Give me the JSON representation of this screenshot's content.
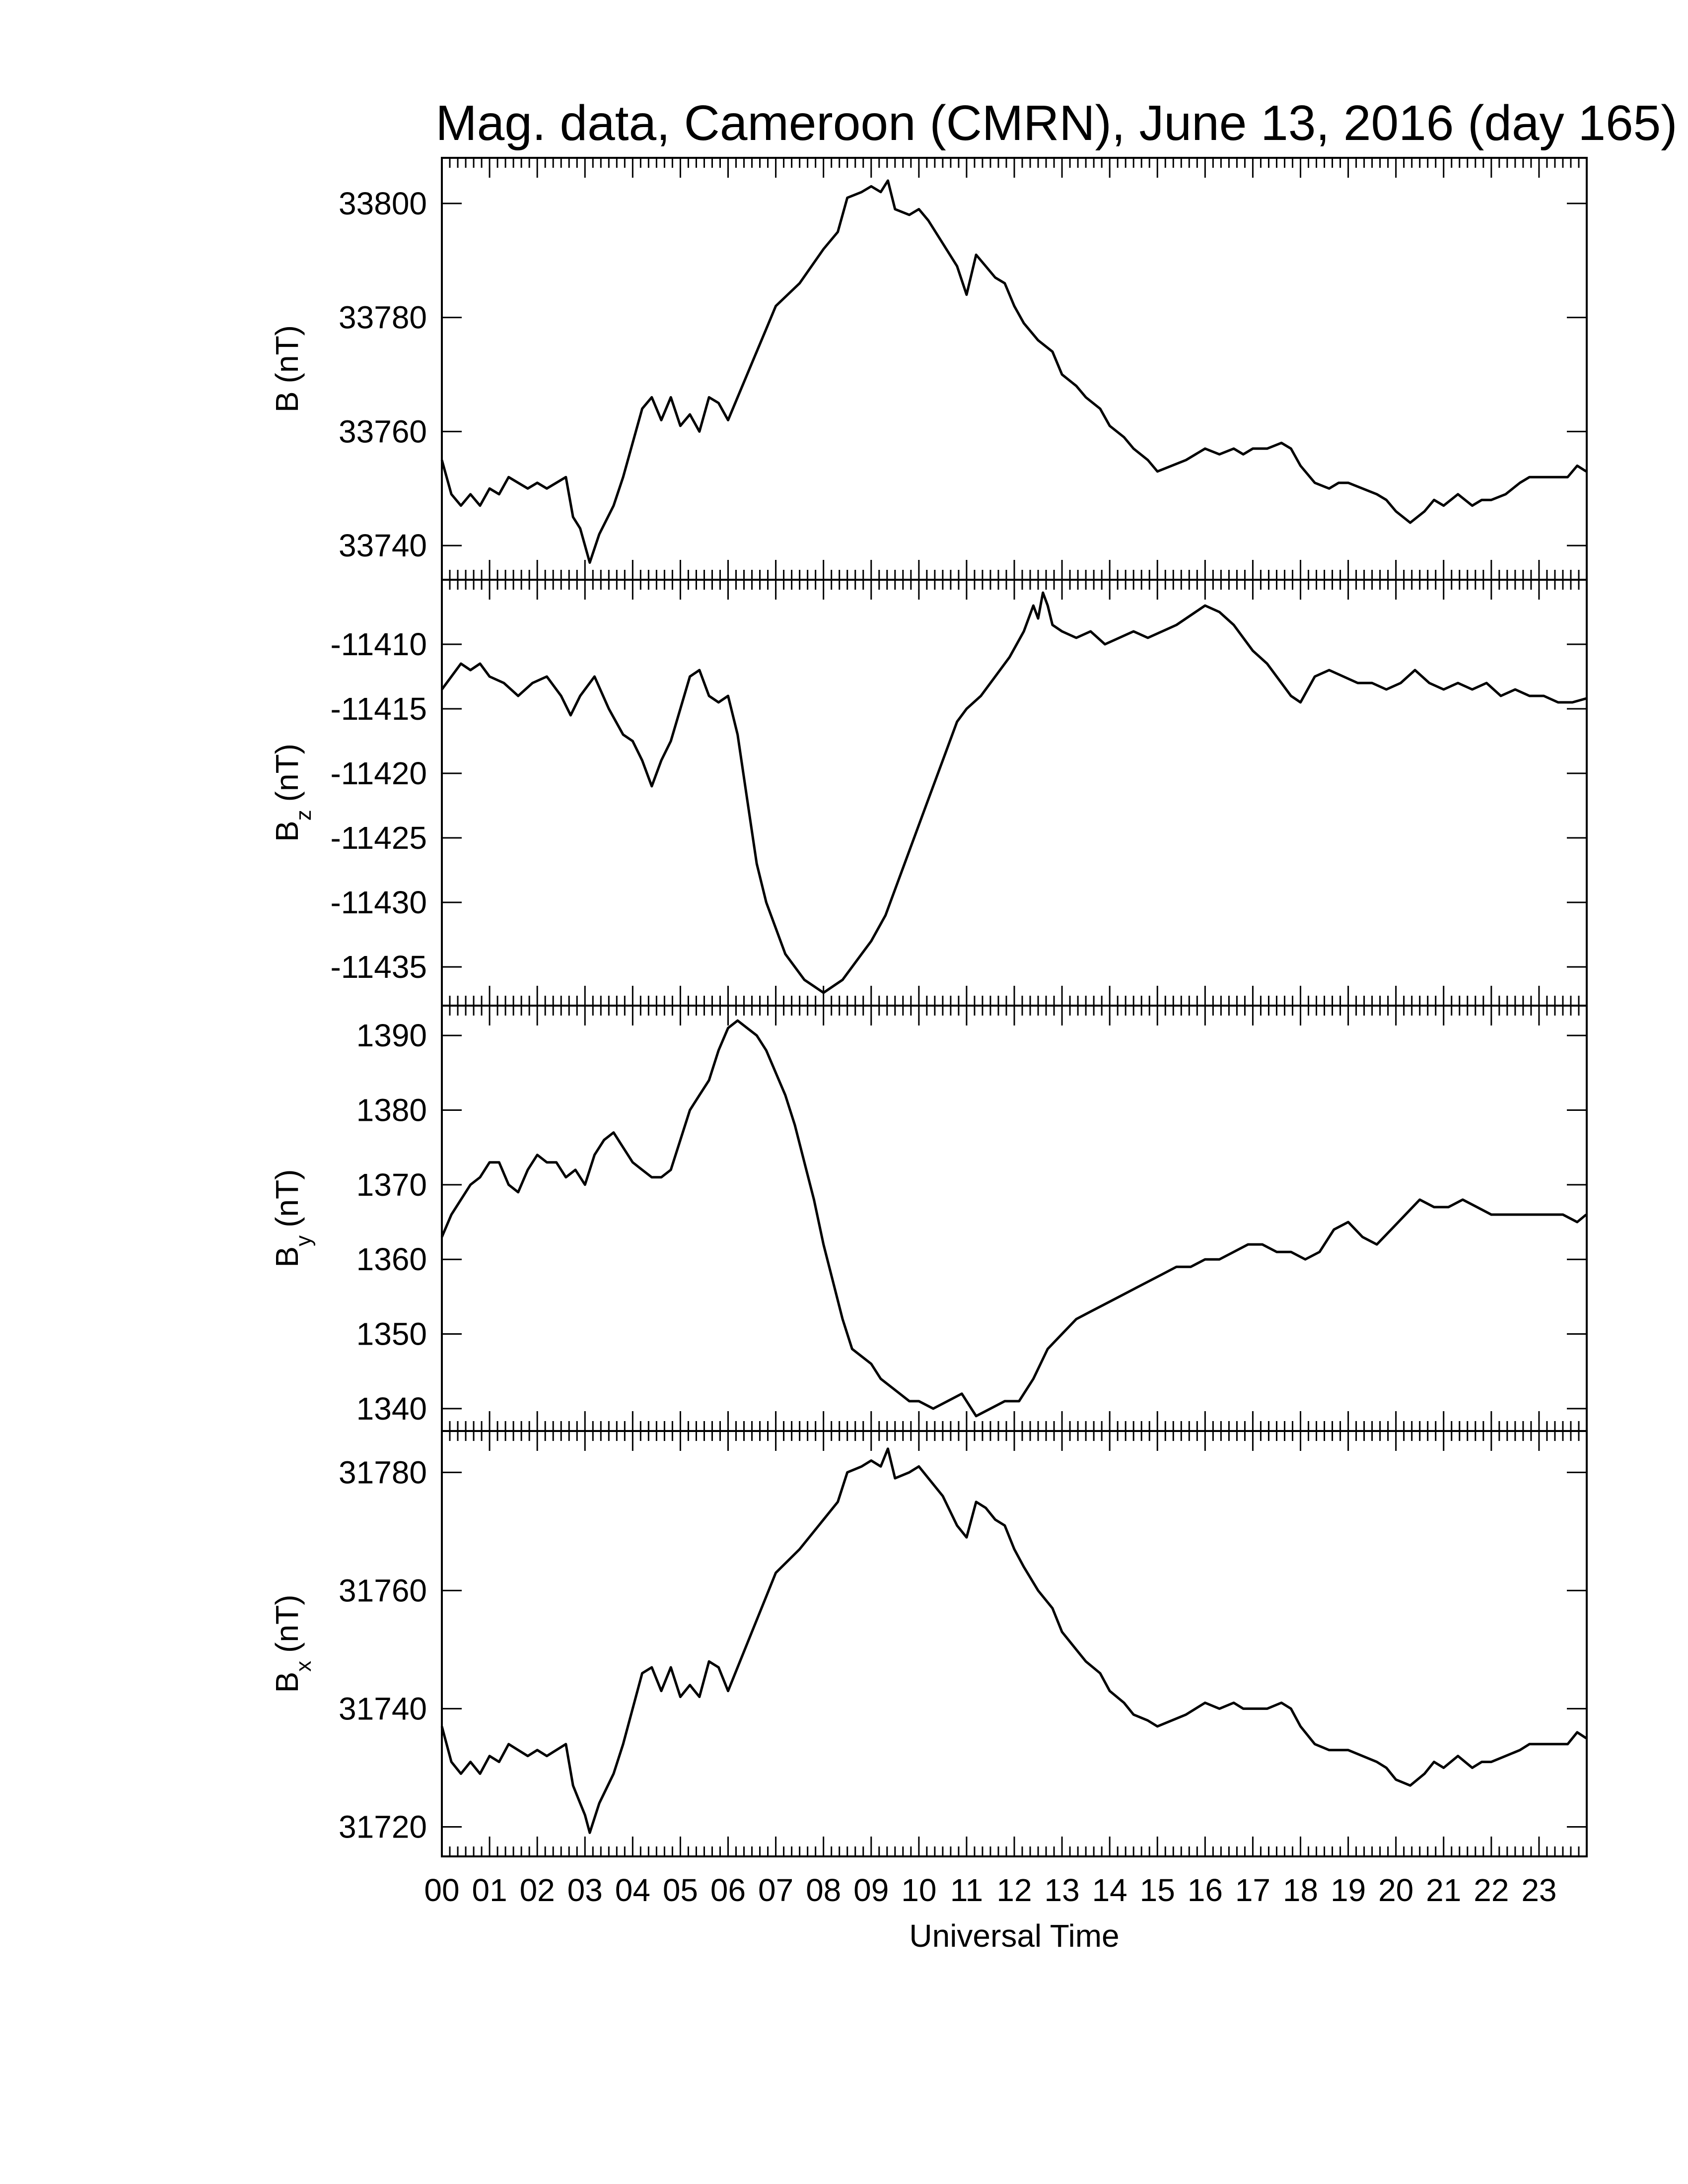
{
  "chart_data": {
    "type": "line",
    "title": "Mag. data, Cameroon (CMRN), June 13, 2016 (day 165)",
    "xlabel": "Universal Time",
    "x_tick_labels": [
      "00",
      "01",
      "02",
      "03",
      "04",
      "05",
      "06",
      "07",
      "08",
      "09",
      "10",
      "11",
      "12",
      "13",
      "14",
      "15",
      "16",
      "17",
      "18",
      "19",
      "20",
      "21",
      "22",
      "23"
    ],
    "xlim": [
      0,
      24
    ],
    "line_color": "#000000",
    "grid": false,
    "panels": [
      {
        "id": "B",
        "ylabel_main": "B",
        "ylabel_sub": "",
        "ylabel_unit": "(nT)",
        "ylim": [
          33734,
          33808
        ],
        "yticks": [
          33740,
          33760,
          33780,
          33800
        ],
        "ytick_labels": [
          "33740",
          "33760",
          "33780",
          "33800"
        ],
        "x": [
          0,
          0.2,
          0.4,
          0.6,
          0.8,
          1.0,
          1.2,
          1.4,
          1.6,
          1.8,
          2.0,
          2.2,
          2.4,
          2.6,
          2.75,
          2.9,
          3.0,
          3.1,
          3.3,
          3.6,
          3.8,
          4.0,
          4.2,
          4.4,
          4.6,
          4.8,
          5.0,
          5.2,
          5.4,
          5.6,
          5.8,
          6.0,
          6.2,
          6.5,
          6.8,
          7.0,
          7.5,
          8.0,
          8.3,
          8.5,
          8.8,
          9.0,
          9.2,
          9.35,
          9.5,
          9.8,
          10.0,
          10.2,
          10.5,
          10.8,
          11.0,
          11.2,
          11.4,
          11.6,
          11.8,
          12.0,
          12.2,
          12.5,
          12.8,
          13.0,
          13.3,
          13.5,
          13.8,
          14.0,
          14.3,
          14.5,
          14.8,
          15.0,
          15.3,
          15.6,
          15.8,
          16.0,
          16.3,
          16.6,
          16.8,
          17.0,
          17.3,
          17.6,
          17.8,
          18.0,
          18.3,
          18.6,
          18.8,
          19.0,
          19.3,
          19.6,
          19.8,
          20.0,
          20.3,
          20.6,
          20.8,
          21.0,
          21.3,
          21.6,
          21.8,
          22.0,
          22.3,
          22.6,
          22.8,
          23.0,
          23.3,
          23.6,
          23.8,
          23.99
        ],
        "values": [
          33755,
          33749,
          33747,
          33749,
          33747,
          33750,
          33749,
          33752,
          33751,
          33750,
          33751,
          33750,
          33751,
          33752,
          33745,
          33743,
          33740,
          33737,
          33742,
          33747,
          33752,
          33758,
          33764,
          33766,
          33762,
          33766,
          33761,
          33763,
          33760,
          33766,
          33765,
          33762,
          33766,
          33772,
          33778,
          33782,
          33786,
          33792,
          33795,
          33801,
          33802,
          33803,
          33802,
          33804,
          33799,
          33798,
          33799,
          33797,
          33793,
          33789,
          33784,
          33791,
          33789,
          33787,
          33786,
          33782,
          33779,
          33776,
          33774,
          33770,
          33768,
          33766,
          33764,
          33761,
          33759,
          33757,
          33755,
          33753,
          33754,
          33755,
          33756,
          33757,
          33756,
          33757,
          33756,
          33757,
          33757,
          33758,
          33757,
          33754,
          33751,
          33750,
          33751,
          33751,
          33750,
          33749,
          33748,
          33746,
          33744,
          33746,
          33748,
          33747,
          33749,
          33747,
          33748,
          33748,
          33749,
          33751,
          33752,
          33752,
          33752,
          33752,
          33754,
          33753
        ]
      },
      {
        "id": "Bz",
        "ylabel_main": "B",
        "ylabel_sub": "z",
        "ylabel_unit": "(nT)",
        "ylim": [
          -11438,
          -11405
        ],
        "yticks": [
          -11435,
          -11430,
          -11425,
          -11420,
          -11415,
          -11410
        ],
        "ytick_labels": [
          "-11435",
          "-11430",
          "-11425",
          "-11420",
          "-11415",
          "-11410"
        ],
        "x": [
          0,
          0.2,
          0.4,
          0.6,
          0.8,
          1.0,
          1.3,
          1.6,
          1.9,
          2.2,
          2.5,
          2.7,
          2.9,
          3.2,
          3.5,
          3.8,
          4.0,
          4.2,
          4.4,
          4.6,
          4.8,
          5.0,
          5.2,
          5.4,
          5.6,
          5.8,
          6.0,
          6.2,
          6.4,
          6.6,
          6.8,
          7.0,
          7.2,
          7.4,
          7.6,
          7.8,
          8.0,
          8.2,
          8.4,
          8.6,
          8.8,
          9.0,
          9.3,
          9.6,
          9.9,
          10.2,
          10.5,
          10.8,
          11.0,
          11.3,
          11.6,
          11.9,
          12.2,
          12.4,
          12.5,
          12.6,
          12.7,
          12.8,
          13.0,
          13.3,
          13.6,
          13.9,
          14.2,
          14.5,
          14.8,
          15.1,
          15.4,
          15.6,
          15.8,
          16.0,
          16.3,
          16.6,
          16.8,
          17.0,
          17.3,
          17.6,
          17.8,
          18.0,
          18.3,
          18.6,
          18.9,
          19.2,
          19.5,
          19.8,
          20.1,
          20.4,
          20.7,
          21.0,
          21.3,
          21.6,
          21.9,
          22.2,
          22.5,
          22.8,
          23.1,
          23.4,
          23.7,
          23.99
        ],
        "values": [
          -11413.5,
          -11412.5,
          -11411.5,
          -11412,
          -11411.5,
          -11412.5,
          -11413,
          -11414,
          -11413,
          -11412.5,
          -11414,
          -11415.5,
          -11414,
          -11412.5,
          -11415,
          -11417,
          -11417.5,
          -11419,
          -11421,
          -11419,
          -11417.5,
          -11415,
          -11412.5,
          -11412,
          -11414,
          -11414.5,
          -11414,
          -11417,
          -11422,
          -11427,
          -11430,
          -11432,
          -11434,
          -11435,
          -11436,
          -11436.5,
          -11437,
          -11436.5,
          -11436,
          -11435,
          -11434,
          -11433,
          -11431,
          -11428,
          -11425,
          -11422,
          -11419,
          -11416,
          -11415,
          -11414,
          -11412.5,
          -11411,
          -11409,
          -11407,
          -11408,
          -11406,
          -11407,
          -11408.5,
          -11409,
          -11409.5,
          -11409,
          -11410,
          -11409.5,
          -11409,
          -11409.5,
          -11409,
          -11408.5,
          -11408,
          -11407.5,
          -11407,
          -11407.5,
          -11408.5,
          -11409.5,
          -11410.5,
          -11411.5,
          -11413,
          -11414,
          -11414.5,
          -11412.5,
          -11412,
          -11412.5,
          -11413,
          -11413,
          -11413.5,
          -11413,
          -11412,
          -11413,
          -11413.5,
          -11413,
          -11413.5,
          -11413,
          -11414,
          -11413.5,
          -11414,
          -11414,
          -11414.5,
          -11414.5,
          -11414.2
        ]
      },
      {
        "id": "By",
        "ylabel_main": "B",
        "ylabel_sub": "y",
        "ylabel_unit": "(nT)",
        "ylim": [
          1337,
          1394
        ],
        "yticks": [
          1340,
          1350,
          1360,
          1370,
          1380,
          1390
        ],
        "ytick_labels": [
          "1340",
          "1350",
          "1360",
          "1370",
          "1380",
          "1390"
        ],
        "x": [
          0,
          0.2,
          0.4,
          0.6,
          0.8,
          1.0,
          1.2,
          1.4,
          1.6,
          1.8,
          2.0,
          2.2,
          2.4,
          2.6,
          2.8,
          3.0,
          3.2,
          3.4,
          3.6,
          3.8,
          4.0,
          4.2,
          4.4,
          4.6,
          4.8,
          5.0,
          5.2,
          5.4,
          5.6,
          5.8,
          6.0,
          6.2,
          6.4,
          6.6,
          6.8,
          7.0,
          7.2,
          7.4,
          7.6,
          7.8,
          8.0,
          8.2,
          8.4,
          8.6,
          8.8,
          9.0,
          9.2,
          9.4,
          9.6,
          9.8,
          10.0,
          10.3,
          10.6,
          10.9,
          11.2,
          11.5,
          11.8,
          12.1,
          12.4,
          12.7,
          13.0,
          13.3,
          13.6,
          13.9,
          14.2,
          14.5,
          14.8,
          15.1,
          15.4,
          15.7,
          16.0,
          16.3,
          16.6,
          16.9,
          17.2,
          17.5,
          17.8,
          18.1,
          18.4,
          18.7,
          19.0,
          19.3,
          19.6,
          19.9,
          20.2,
          20.5,
          20.8,
          21.1,
          21.4,
          21.7,
          22.0,
          22.3,
          22.6,
          22.9,
          23.2,
          23.5,
          23.8,
          23.99
        ],
        "values": [
          1363,
          1366,
          1368,
          1370,
          1371,
          1373,
          1373,
          1370,
          1369,
          1372,
          1374,
          1373,
          1373,
          1371,
          1372,
          1370,
          1374,
          1376,
          1377,
          1375,
          1373,
          1372,
          1371,
          1371,
          1372,
          1376,
          1380,
          1382,
          1384,
          1388,
          1391,
          1392,
          1391,
          1390,
          1388,
          1385,
          1382,
          1378,
          1373,
          1368,
          1362,
          1357,
          1352,
          1348,
          1347,
          1346,
          1344,
          1343,
          1342,
          1341,
          1341,
          1340,
          1341,
          1342,
          1339,
          1340,
          1341,
          1341,
          1344,
          1348,
          1350,
          1352,
          1353,
          1354,
          1355,
          1356,
          1357,
          1358,
          1359,
          1359,
          1360,
          1360,
          1361,
          1362,
          1362,
          1361,
          1361,
          1360,
          1361,
          1364,
          1365,
          1363,
          1362,
          1364,
          1366,
          1368,
          1367,
          1367,
          1368,
          1367,
          1366,
          1366,
          1366,
          1366,
          1366,
          1366,
          1365,
          1366
        ]
      },
      {
        "id": "Bx",
        "ylabel_main": "B",
        "ylabel_sub": "x",
        "ylabel_unit": "(nT)",
        "ylim": [
          31715,
          31787
        ],
        "yticks": [
          31720,
          31740,
          31760,
          31780
        ],
        "ytick_labels": [
          "31720",
          "31740",
          "31760",
          "31780"
        ],
        "x": [
          0,
          0.2,
          0.4,
          0.6,
          0.8,
          1.0,
          1.2,
          1.4,
          1.6,
          1.8,
          2.0,
          2.2,
          2.4,
          2.6,
          2.75,
          2.9,
          3.0,
          3.1,
          3.3,
          3.6,
          3.8,
          4.0,
          4.2,
          4.4,
          4.6,
          4.8,
          5.0,
          5.2,
          5.4,
          5.6,
          5.8,
          6.0,
          6.2,
          6.5,
          6.8,
          7.0,
          7.5,
          8.0,
          8.3,
          8.5,
          8.8,
          9.0,
          9.2,
          9.35,
          9.5,
          9.8,
          10.0,
          10.2,
          10.5,
          10.8,
          11.0,
          11.2,
          11.4,
          11.6,
          11.8,
          12.0,
          12.2,
          12.5,
          12.8,
          13.0,
          13.3,
          13.5,
          13.8,
          14.0,
          14.3,
          14.5,
          14.8,
          15.0,
          15.3,
          15.6,
          15.8,
          16.0,
          16.3,
          16.6,
          16.8,
          17.0,
          17.3,
          17.6,
          17.8,
          18.0,
          18.3,
          18.6,
          18.8,
          19.0,
          19.3,
          19.6,
          19.8,
          20.0,
          20.3,
          20.6,
          20.8,
          21.0,
          21.3,
          21.6,
          21.8,
          22.0,
          22.3,
          22.6,
          22.8,
          23.0,
          23.3,
          23.6,
          23.8,
          23.99
        ],
        "values": [
          31737,
          31731,
          31729,
          31731,
          31729,
          31732,
          31731,
          31734,
          31733,
          31732,
          31733,
          31732,
          31733,
          31734,
          31727,
          31724,
          31722,
          31719,
          31724,
          31729,
          31734,
          31740,
          31746,
          31747,
          31743,
          31747,
          31742,
          31744,
          31742,
          31748,
          31747,
          31743,
          31747,
          31753,
          31759,
          31763,
          31767,
          31772,
          31775,
          31780,
          31781,
          31782,
          31781,
          31784,
          31779,
          31780,
          31781,
          31779,
          31776,
          31771,
          31769,
          31775,
          31774,
          31772,
          31771,
          31767,
          31764,
          31760,
          31757,
          31753,
          31750,
          31748,
          31746,
          31743,
          31741,
          31739,
          31738,
          31737,
          31738,
          31739,
          31740,
          31741,
          31740,
          31741,
          31740,
          31740,
          31740,
          31741,
          31740,
          31737,
          31734,
          31733,
          31733,
          31733,
          31732,
          31731,
          31730,
          31728,
          31727,
          31729,
          31731,
          31730,
          31732,
          31730,
          31731,
          31731,
          31732,
          31733,
          31734,
          31734,
          31734,
          31734,
          31736,
          31735
        ]
      }
    ]
  }
}
